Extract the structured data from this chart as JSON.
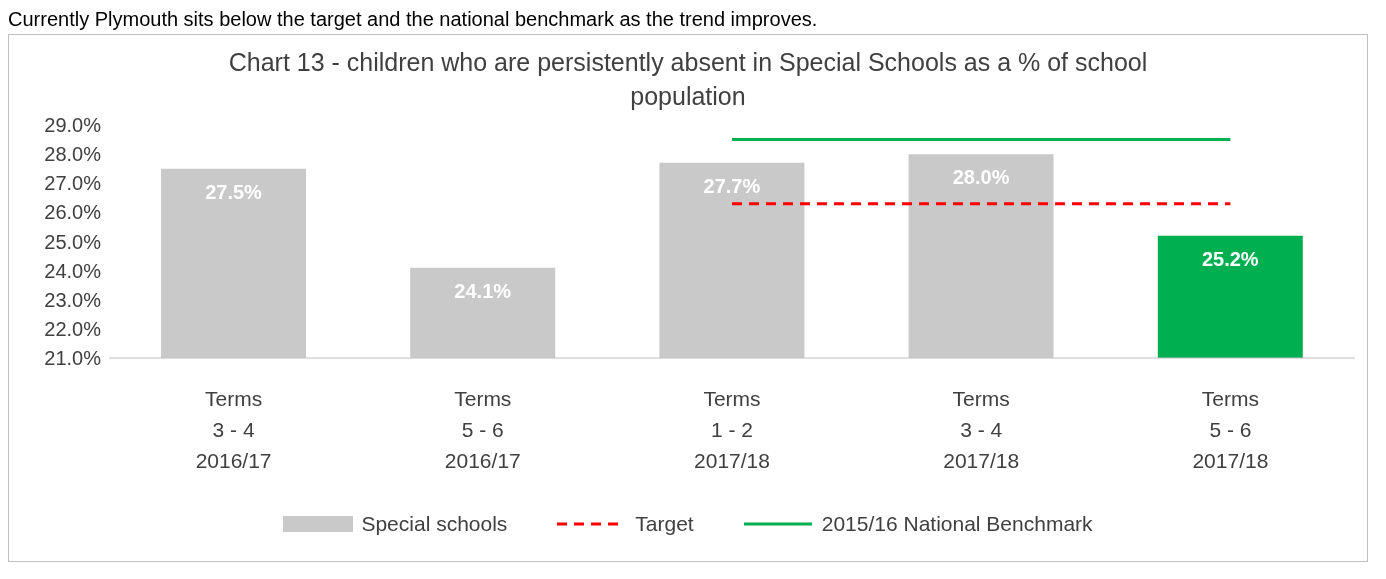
{
  "chart_data": {
    "type": "bar",
    "title": "Chart 13 - children who are persistently absent in Special Schools as a % of school population",
    "annotations": [
      "Currently Plymouth sits below the target and the national benchmark as the trend improves."
    ],
    "categories": [
      "Terms\n3 - 4\n2016/17",
      "Terms\n5 - 6\n2016/17",
      "Terms\n1 - 2\n2017/18",
      "Terms\n3 - 4\n2017/18",
      "Terms\n5 - 6\n2017/18"
    ],
    "series": [
      {
        "name": "Special schools",
        "color": "#c9c9c9",
        "colors": [
          "#c9c9c9",
          "#c9c9c9",
          "#c9c9c9",
          "#c9c9c9",
          "#00b050"
        ],
        "values": [
          27.5,
          24.1,
          27.7,
          28.0,
          25.2
        ],
        "value_labels": [
          "27.5%",
          "24.1%",
          "27.7%",
          "28.0%",
          "25.2%"
        ]
      },
      {
        "name": "Target",
        "type": "line",
        "color": "#ff0000",
        "line_style": "dashed",
        "values": [
          null,
          null,
          26.3,
          26.3,
          26.3
        ]
      },
      {
        "name": "2015/16 National Benchmark",
        "type": "line",
        "color": "#00b050",
        "line_style": "solid",
        "values": [
          null,
          null,
          28.5,
          28.5,
          28.5
        ]
      }
    ],
    "ylim": [
      21,
      29
    ],
    "yticks": [
      {
        "value": 21,
        "label": "21.0%"
      },
      {
        "value": 22,
        "label": "22.0%"
      },
      {
        "value": 23,
        "label": "23.0%"
      },
      {
        "value": 24,
        "label": "24.0%"
      },
      {
        "value": 25,
        "label": "25.0%"
      },
      {
        "value": 26,
        "label": "26.0%"
      },
      {
        "value": 27,
        "label": "27.0%"
      },
      {
        "value": 28,
        "label": "28.0%"
      },
      {
        "value": 29,
        "label": "29.0%"
      }
    ],
    "grid": false,
    "legend": "bottom",
    "marker": "none"
  }
}
